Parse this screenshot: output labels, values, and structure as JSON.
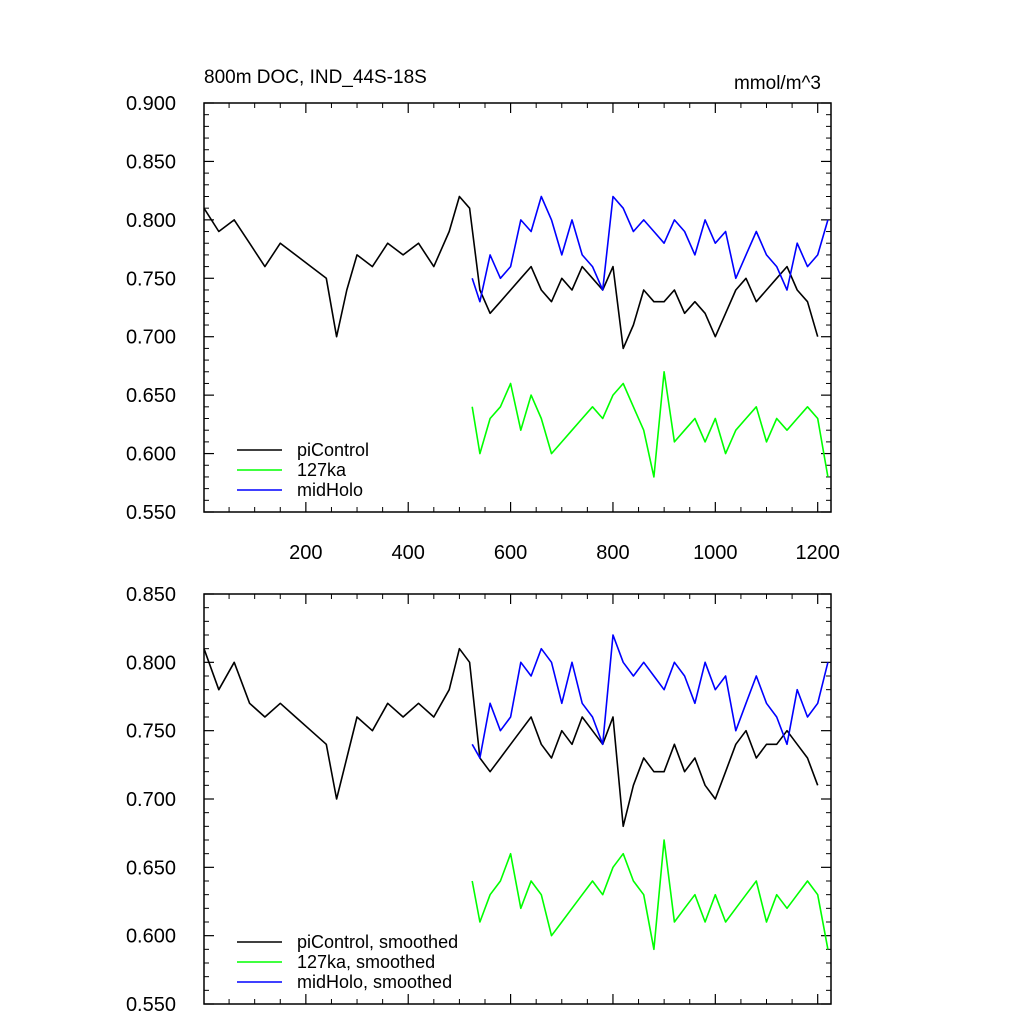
{
  "chart_data": [
    {
      "type": "line",
      "title": "800m DOC, IND_44S-18S",
      "units": "mmol/m^3",
      "xlim": [
        1,
        1226
      ],
      "ylim": [
        0.55,
        0.9
      ],
      "xticks": [
        200,
        400,
        600,
        800,
        1000,
        1200
      ],
      "xtick_labels": [
        "200",
        "400",
        "600",
        "800",
        "1000",
        "1200"
      ],
      "yticks": [
        0.55,
        0.6,
        0.65,
        0.7,
        0.75,
        0.8,
        0.85,
        0.9
      ],
      "ytick_labels": [
        "0.550",
        "0.600",
        "0.650",
        "0.700",
        "0.750",
        "0.800",
        "0.850",
        "0.900"
      ],
      "grid": false,
      "legend_position": "bottom-left",
      "series": [
        {
          "name": "piControl",
          "color": "#000000",
          "x": [
            1,
            30,
            60,
            90,
            120,
            150,
            180,
            210,
            240,
            260,
            280,
            300,
            330,
            360,
            390,
            420,
            450,
            480,
            500,
            520,
            540,
            560,
            580,
            600,
            620,
            640,
            660,
            680,
            700,
            720,
            740,
            760,
            780,
            800,
            820,
            840,
            860,
            880,
            900,
            920,
            940,
            960,
            980,
            1000,
            1020,
            1040,
            1060,
            1080,
            1100,
            1120,
            1140,
            1160,
            1180,
            1200
          ],
          "y": [
            0.81,
            0.79,
            0.8,
            0.78,
            0.76,
            0.78,
            0.77,
            0.76,
            0.75,
            0.7,
            0.74,
            0.77,
            0.76,
            0.78,
            0.77,
            0.78,
            0.76,
            0.79,
            0.82,
            0.81,
            0.74,
            0.72,
            0.73,
            0.74,
            0.75,
            0.76,
            0.74,
            0.73,
            0.75,
            0.74,
            0.76,
            0.75,
            0.74,
            0.76,
            0.69,
            0.71,
            0.74,
            0.73,
            0.73,
            0.74,
            0.72,
            0.73,
            0.72,
            0.7,
            0.72,
            0.74,
            0.75,
            0.73,
            0.74,
            0.75,
            0.76,
            0.74,
            0.73,
            0.7
          ]
        },
        {
          "name": "127ka",
          "color": "#00ff00",
          "x": [
            525,
            540,
            560,
            580,
            600,
            620,
            640,
            660,
            680,
            700,
            720,
            740,
            760,
            780,
            800,
            820,
            840,
            860,
            880,
            900,
            920,
            940,
            960,
            980,
            1000,
            1020,
            1040,
            1060,
            1080,
            1100,
            1120,
            1140,
            1160,
            1180,
            1200,
            1220
          ],
          "y": [
            0.64,
            0.6,
            0.63,
            0.64,
            0.66,
            0.62,
            0.65,
            0.63,
            0.6,
            0.61,
            0.62,
            0.63,
            0.64,
            0.63,
            0.65,
            0.66,
            0.64,
            0.62,
            0.58,
            0.67,
            0.61,
            0.62,
            0.63,
            0.61,
            0.63,
            0.6,
            0.62,
            0.63,
            0.64,
            0.61,
            0.63,
            0.62,
            0.63,
            0.64,
            0.63,
            0.58
          ]
        },
        {
          "name": "midHolo",
          "color": "#0000ff",
          "x": [
            525,
            540,
            560,
            580,
            600,
            620,
            640,
            660,
            680,
            700,
            720,
            740,
            760,
            780,
            800,
            820,
            840,
            860,
            880,
            900,
            920,
            940,
            960,
            980,
            1000,
            1020,
            1040,
            1060,
            1080,
            1100,
            1120,
            1140,
            1160,
            1180,
            1200,
            1220
          ],
          "y": [
            0.75,
            0.73,
            0.77,
            0.75,
            0.76,
            0.8,
            0.79,
            0.82,
            0.8,
            0.77,
            0.8,
            0.77,
            0.76,
            0.74,
            0.82,
            0.81,
            0.79,
            0.8,
            0.79,
            0.78,
            0.8,
            0.79,
            0.77,
            0.8,
            0.78,
            0.79,
            0.75,
            0.77,
            0.79,
            0.77,
            0.76,
            0.74,
            0.78,
            0.76,
            0.77,
            0.8
          ]
        }
      ]
    },
    {
      "type": "line",
      "title": "",
      "xlim": [
        1,
        1226
      ],
      "ylim": [
        0.55,
        0.85
      ],
      "xticks": [
        200,
        400,
        600,
        800,
        1000,
        1200
      ],
      "yticks": [
        0.55,
        0.6,
        0.65,
        0.7,
        0.75,
        0.8,
        0.85
      ],
      "ytick_labels": [
        "0.550",
        "0.600",
        "0.650",
        "0.700",
        "0.750",
        "0.800",
        "0.850"
      ],
      "grid": false,
      "legend_position": "bottom-left",
      "series": [
        {
          "name": "piControl, smoothed",
          "color": "#000000",
          "x": [
            1,
            30,
            60,
            90,
            120,
            150,
            180,
            210,
            240,
            260,
            280,
            300,
            330,
            360,
            390,
            420,
            450,
            480,
            500,
            520,
            540,
            560,
            580,
            600,
            620,
            640,
            660,
            680,
            700,
            720,
            740,
            760,
            780,
            800,
            820,
            840,
            860,
            880,
            900,
            920,
            940,
            960,
            980,
            1000,
            1020,
            1040,
            1060,
            1080,
            1100,
            1120,
            1140,
            1160,
            1180,
            1200
          ],
          "y": [
            0.81,
            0.78,
            0.8,
            0.77,
            0.76,
            0.77,
            0.76,
            0.75,
            0.74,
            0.7,
            0.73,
            0.76,
            0.75,
            0.77,
            0.76,
            0.77,
            0.76,
            0.78,
            0.81,
            0.8,
            0.73,
            0.72,
            0.73,
            0.74,
            0.75,
            0.76,
            0.74,
            0.73,
            0.75,
            0.74,
            0.76,
            0.75,
            0.74,
            0.76,
            0.68,
            0.71,
            0.73,
            0.72,
            0.72,
            0.74,
            0.72,
            0.73,
            0.71,
            0.7,
            0.72,
            0.74,
            0.75,
            0.73,
            0.74,
            0.74,
            0.75,
            0.74,
            0.73,
            0.71
          ]
        },
        {
          "name": "127ka, smoothed",
          "color": "#00ff00",
          "x": [
            525,
            540,
            560,
            580,
            600,
            620,
            640,
            660,
            680,
            700,
            720,
            740,
            760,
            780,
            800,
            820,
            840,
            860,
            880,
            900,
            920,
            940,
            960,
            980,
            1000,
            1020,
            1040,
            1060,
            1080,
            1100,
            1120,
            1140,
            1160,
            1180,
            1200,
            1220
          ],
          "y": [
            0.64,
            0.61,
            0.63,
            0.64,
            0.66,
            0.62,
            0.64,
            0.63,
            0.6,
            0.61,
            0.62,
            0.63,
            0.64,
            0.63,
            0.65,
            0.66,
            0.64,
            0.63,
            0.59,
            0.67,
            0.61,
            0.62,
            0.63,
            0.61,
            0.63,
            0.61,
            0.62,
            0.63,
            0.64,
            0.61,
            0.63,
            0.62,
            0.63,
            0.64,
            0.63,
            0.59
          ]
        },
        {
          "name": "midHolo, smoothed",
          "color": "#0000ff",
          "x": [
            525,
            540,
            560,
            580,
            600,
            620,
            640,
            660,
            680,
            700,
            720,
            740,
            760,
            780,
            800,
            820,
            840,
            860,
            880,
            900,
            920,
            940,
            960,
            980,
            1000,
            1020,
            1040,
            1060,
            1080,
            1100,
            1120,
            1140,
            1160,
            1180,
            1200,
            1220
          ],
          "y": [
            0.74,
            0.73,
            0.77,
            0.75,
            0.76,
            0.8,
            0.79,
            0.81,
            0.8,
            0.77,
            0.8,
            0.77,
            0.76,
            0.74,
            0.82,
            0.8,
            0.79,
            0.8,
            0.79,
            0.78,
            0.8,
            0.79,
            0.77,
            0.8,
            0.78,
            0.79,
            0.75,
            0.77,
            0.79,
            0.77,
            0.76,
            0.74,
            0.78,
            0.76,
            0.77,
            0.8
          ]
        }
      ]
    }
  ]
}
